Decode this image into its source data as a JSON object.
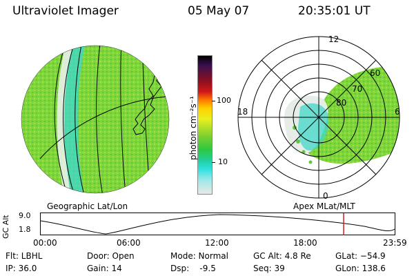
{
  "header": {
    "instrument": "Ultraviolet Imager",
    "date": "05 May 07",
    "time": "20:35:01 UT"
  },
  "left_panel": {
    "caption": "Geographic Lat/Lon"
  },
  "right_panel": {
    "caption": "Apex MLat/MLT",
    "mlt_labels": {
      "top": "12",
      "left": "18",
      "right": "6",
      "bottom": "0"
    },
    "lat_labels": [
      "60",
      "70",
      "80"
    ]
  },
  "colorbar": {
    "unit": "photon cm⁻²s⁻¹",
    "ticks": [
      "100",
      "10"
    ],
    "scale": "log",
    "colors": [
      "#000000",
      "#3a1050",
      "#8a1020",
      "#d01818",
      "#ff7a00",
      "#ffd000",
      "#e8f020",
      "#7ed030",
      "#2ec840",
      "#20d0a0",
      "#30e0e0",
      "#a0e8e8",
      "#e8e8e8"
    ]
  },
  "altitude_plot": {
    "ylabel": "GC Alt",
    "y_ticks": [
      "9.0",
      "1.8"
    ],
    "x_ticks": [
      "00:00",
      "06:00",
      "12:00",
      "18:00",
      "23:59"
    ],
    "current_time_marker": "20:35"
  },
  "info": {
    "flt": "Flt: LBHL",
    "ip": "IP: 36.0",
    "door": "Door: Open",
    "gain": "Gain: 14",
    "mode": "Mode: Normal",
    "dsp": "Dsp:    -9.5",
    "gcalt": "GC Alt: 4.8 Re",
    "seq": "Seq: 39",
    "glat": "GLat: −54.9",
    "glon": "GLon: 138.6"
  }
}
